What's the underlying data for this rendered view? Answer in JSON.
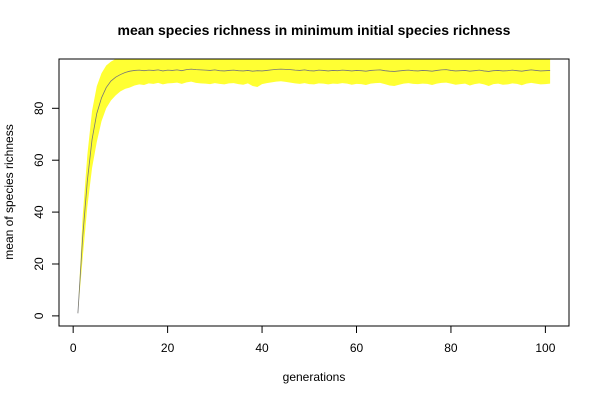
{
  "chart_data": {
    "type": "area",
    "title": "mean species richness in minimum initial species richness",
    "xlabel": "generations",
    "ylabel": "mean of species richness",
    "xlim": [
      1,
      101
    ],
    "ylim": [
      0,
      99
    ],
    "x_ticks": [
      0,
      20,
      40,
      60,
      80,
      100
    ],
    "y_ticks": [
      0,
      20,
      40,
      60,
      80
    ],
    "grid": false,
    "legend": "none",
    "band_color": "#ffff33",
    "line_color": "#777777",
    "series": [
      {
        "role": "mean",
        "x": [
          1,
          2,
          3,
          4,
          5,
          6,
          7,
          8,
          9,
          10,
          11,
          12,
          13,
          14,
          15,
          16,
          17,
          18,
          19,
          20,
          21,
          22,
          23,
          24,
          25,
          26,
          27,
          28,
          29,
          30,
          31,
          32,
          33,
          34,
          35,
          36,
          37,
          38,
          39,
          40,
          41,
          42,
          43,
          44,
          45,
          46,
          47,
          48,
          49,
          50,
          51,
          52,
          53,
          54,
          55,
          56,
          57,
          58,
          59,
          60,
          61,
          62,
          63,
          64,
          65,
          66,
          67,
          68,
          69,
          70,
          71,
          72,
          73,
          74,
          75,
          76,
          77,
          78,
          79,
          80,
          81,
          82,
          83,
          84,
          85,
          86,
          87,
          88,
          89,
          90,
          91,
          92,
          93,
          94,
          95,
          96,
          97,
          98,
          99,
          100,
          101
        ],
        "y": [
          1,
          30,
          52,
          68,
          78,
          84,
          88,
          90.5,
          92,
          93,
          93.8,
          94.3,
          94.6,
          94.7,
          94.5,
          94.7,
          94.6,
          94.8,
          94.4,
          94.7,
          94.6,
          94.8,
          94.5,
          94.9,
          95.1,
          94.9,
          94.8,
          94.7,
          94.6,
          94.8,
          94.5,
          94.4,
          94.6,
          94.7,
          94.5,
          94.4,
          94.6,
          94.3,
          94.5,
          94.4,
          94.6,
          94.8,
          95,
          95.1,
          95,
          94.9,
          94.7,
          94.6,
          94.8,
          94.5,
          94.4,
          94.7,
          94.6,
          94.4,
          94.6,
          94.5,
          94.7,
          94.6,
          94.4,
          94.6,
          94.5,
          94.3,
          94.6,
          94.7,
          94.8,
          94.5,
          94.3,
          94.2,
          94.4,
          94.6,
          94.7,
          94.5,
          94.4,
          94.6,
          94.5,
          94.3,
          94.6,
          94.8,
          94.9,
          94.6,
          94.4,
          94.5,
          94.6,
          94.3,
          94.5,
          94.7,
          94.4,
          94.2,
          94.5,
          94.6,
          94.4,
          94.5,
          94.7,
          94.5,
          94.3,
          94.6,
          94.8,
          94.6,
          94.4,
          94.5,
          94.6
        ]
      },
      {
        "role": "lower",
        "y": [
          1,
          22,
          42,
          57,
          67,
          75,
          80,
          83,
          85,
          86.5,
          87.5,
          88,
          88.8,
          89.2,
          89,
          89.6,
          89.4,
          89.8,
          89.2,
          89.6,
          89.7,
          89.9,
          89.4,
          90,
          90.3,
          89.8,
          89.6,
          89.5,
          89.3,
          89.7,
          89.4,
          89.2,
          89.6,
          89.7,
          89.3,
          89.1,
          89.6,
          88.6,
          88.2,
          89.3,
          89.7,
          90,
          90.3,
          90.4,
          90.2,
          89.9,
          89.6,
          89.4,
          89.7,
          89.3,
          89.2,
          89.6,
          89.5,
          89.2,
          89.5,
          89.4,
          89.7,
          89.5,
          89.1,
          89.4,
          89.3,
          89,
          89.5,
          89.7,
          89.8,
          89.3,
          88.8,
          88.6,
          89.1,
          89.5,
          89.7,
          89.4,
          89.3,
          89.5,
          89.4,
          89,
          89.5,
          89.8,
          89.9,
          89.5,
          89.1,
          89.3,
          89.5,
          88.8,
          89.3,
          89.6,
          89.2,
          88.6,
          89.3,
          89.5,
          89.1,
          89.2,
          89.6,
          89.4,
          88.9,
          89.5,
          89.8,
          89.5,
          89.2,
          89.3,
          89.5
        ]
      },
      {
        "role": "upper",
        "y": [
          1,
          38,
          62,
          79,
          88.5,
          93.5,
          96.5,
          98,
          99,
          99,
          99,
          99,
          99,
          99,
          99,
          99,
          99,
          99,
          99,
          99,
          99,
          99,
          99,
          99,
          99,
          99,
          99,
          99,
          99,
          99,
          99,
          99,
          99,
          99,
          99,
          99,
          99,
          99,
          99,
          99,
          99,
          99,
          99,
          99,
          99,
          99,
          99,
          99,
          99,
          99,
          99,
          99,
          99,
          99,
          99,
          99,
          99,
          99,
          99,
          99,
          99,
          99,
          99,
          99,
          99,
          99,
          99,
          99,
          99,
          99,
          99,
          99,
          99,
          99,
          99,
          99,
          99,
          99,
          99,
          99,
          99,
          99,
          99,
          99,
          99,
          99,
          99,
          99,
          99,
          99,
          99,
          99,
          99,
          99,
          99,
          99,
          99,
          99,
          99,
          99,
          99
        ]
      }
    ]
  }
}
